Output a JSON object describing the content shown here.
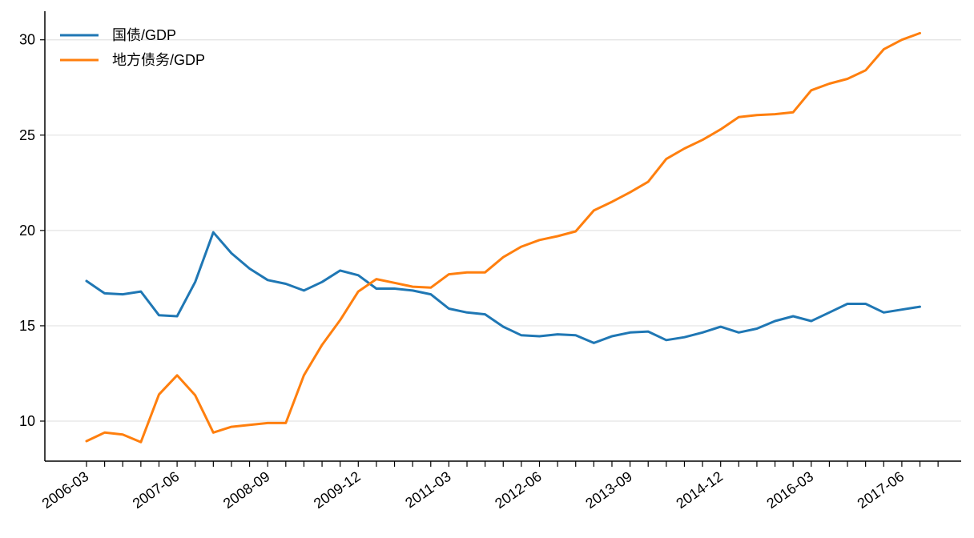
{
  "chart_data": {
    "type": "line",
    "title": "",
    "xlabel": "",
    "ylabel": "",
    "x": [
      "2006-03",
      "2006-06",
      "2006-09",
      "2006-12",
      "2007-03",
      "2007-06",
      "2007-09",
      "2007-12",
      "2008-03",
      "2008-06",
      "2008-09",
      "2008-12",
      "2009-03",
      "2009-06",
      "2009-09",
      "2009-12",
      "2010-03",
      "2010-06",
      "2010-09",
      "2010-12",
      "2011-03",
      "2011-06",
      "2011-09",
      "2011-12",
      "2012-03",
      "2012-06",
      "2012-09",
      "2012-12",
      "2013-03",
      "2013-06",
      "2013-09",
      "2013-12",
      "2014-03",
      "2014-06",
      "2014-09",
      "2014-12",
      "2015-03",
      "2015-06",
      "2015-09",
      "2015-12",
      "2016-03",
      "2016-06",
      "2016-09",
      "2016-12",
      "2017-03",
      "2017-06",
      "2017-09",
      "2017-12"
    ],
    "x_tick_labels": [
      "2006-03",
      "2007-06",
      "2008-09",
      "2009-12",
      "2011-03",
      "2012-06",
      "2013-09",
      "2014-12",
      "2016-03",
      "2017-06"
    ],
    "ylim": [
      7.9,
      31.5
    ],
    "y_ticks": [
      10,
      15,
      20,
      25,
      30
    ],
    "grid": "horizontal",
    "legend_position": "top-left",
    "series": [
      {
        "name": "国债/GDP",
        "color": "#1f77b4",
        "values": [
          17.35,
          16.7,
          16.65,
          16.8,
          15.55,
          15.5,
          17.3,
          19.9,
          18.8,
          18.0,
          17.4,
          17.2,
          16.85,
          17.3,
          17.9,
          17.65,
          16.95,
          16.95,
          16.85,
          16.65,
          15.9,
          15.7,
          15.6,
          14.95,
          14.5,
          14.45,
          14.55,
          14.5,
          14.1,
          14.45,
          14.65,
          14.7,
          14.25,
          14.4,
          14.65,
          14.95,
          14.65,
          14.85,
          15.25,
          15.5,
          15.25,
          15.7,
          16.15,
          16.15,
          15.7,
          15.85,
          16.0,
          null
        ]
      },
      {
        "name": "地方债务/GDP",
        "color": "#ff7f0e",
        "values": [
          8.95,
          9.4,
          9.3,
          8.9,
          11.4,
          12.4,
          11.35,
          9.4,
          9.7,
          9.8,
          9.9,
          9.9,
          12.4,
          14.0,
          15.3,
          16.8,
          17.45,
          17.25,
          17.05,
          17.0,
          17.7,
          17.8,
          17.8,
          18.6,
          19.15,
          19.5,
          19.7,
          19.95,
          21.05,
          21.5,
          22.0,
          22.55,
          23.75,
          24.3,
          24.75,
          25.3,
          25.95,
          26.05,
          26.1,
          26.2,
          27.35,
          27.7,
          27.95,
          28.4,
          29.5,
          30.0,
          30.35,
          null
        ]
      }
    ]
  }
}
